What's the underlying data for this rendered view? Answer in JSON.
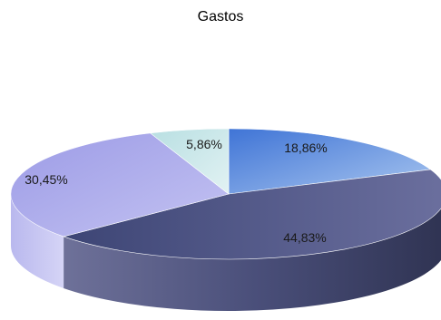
{
  "chart_data": {
    "type": "pie",
    "title": "Gastos",
    "slices": [
      {
        "label": "18,86%",
        "value": 18.86,
        "color": "#5a86d6"
      },
      {
        "label": "44,83%",
        "value": 44.83,
        "color": "#4f5684"
      },
      {
        "label": "30,45%",
        "value": 30.45,
        "color": "#aaa9e9"
      },
      {
        "label": "5,86%",
        "value": 5.86,
        "color": "#c8e6e8"
      }
    ]
  }
}
